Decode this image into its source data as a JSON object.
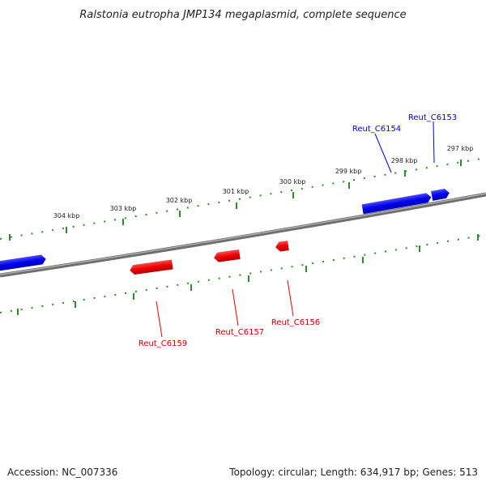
{
  "title": "Ralstonia eutropha JMP134 megaplasmid, complete sequence",
  "footer": {
    "accession": "Accession: NC_007336",
    "summary": "Topology: circular; Length: 634,917 bp; Genes: 513"
  },
  "colors": {
    "forward_gene": "#0000ee",
    "reverse_gene": "#ee0000",
    "backbone": "#808080",
    "ticks": "#2e8b2e"
  },
  "kbp_ticks": [
    "304 kbp",
    "303 kbp",
    "302 kbp",
    "301 kbp",
    "300 kbp",
    "299 kbp",
    "298 kbp",
    "297 kbp"
  ],
  "gene_labels": {
    "forward": [
      "Reut_C6154",
      "Reut_C6153"
    ],
    "reverse": [
      "Reut_C6159",
      "Reut_C6157",
      "Reut_C6156"
    ]
  }
}
